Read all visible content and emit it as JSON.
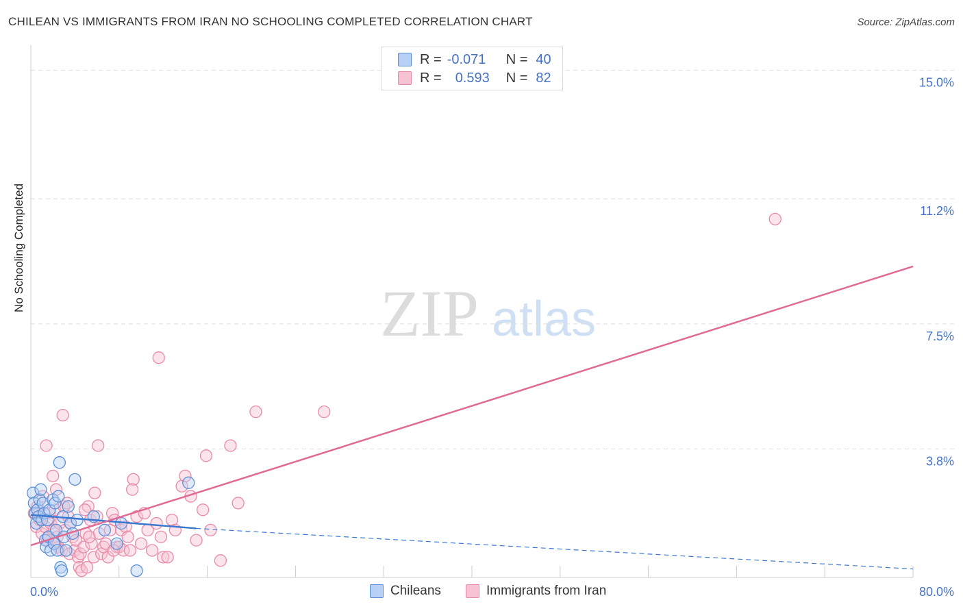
{
  "title": "CHILEAN VS IMMIGRANTS FROM IRAN NO SCHOOLING COMPLETED CORRELATION CHART",
  "source": "Source: ZipAtlas.com",
  "watermark": {
    "zip": "ZIP",
    "atlas": "atlas"
  },
  "colors": {
    "blue_fill": "#b8d0f5",
    "blue_stroke": "#5b8fd6",
    "blue_line": "#3a78d0",
    "pink_fill": "#f7c3d3",
    "pink_stroke": "#e88aa8",
    "pink_line": "#e06a94",
    "tick_text": "#4472c4",
    "grid": "#dddddd"
  },
  "legend": {
    "r_label": "R =",
    "n_label": "N =",
    "rows": [
      {
        "r": "-0.071",
        "n": "40"
      },
      {
        "r": "0.593",
        "n": "82"
      }
    ]
  },
  "bottom_legend": [
    "Chileans",
    "Immigrants from Iran"
  ],
  "chart_data": {
    "type": "scatter",
    "title": "CHILEAN VS IMMIGRANTS FROM IRAN NO SCHOOLING COMPLETED CORRELATION CHART",
    "xlabel": "",
    "ylabel": "No Schooling Completed",
    "xlim": [
      0,
      80
    ],
    "ylim": [
      0,
      15.5
    ],
    "x_tick_labels": [
      {
        "value": 0,
        "label": "0.0%"
      },
      {
        "value": 80,
        "label": "80.0%"
      }
    ],
    "y_ticks": [
      {
        "value": 3.8,
        "label": "3.8%"
      },
      {
        "value": 7.5,
        "label": "7.5%"
      },
      {
        "value": 11.2,
        "label": "11.2%"
      },
      {
        "value": 15.0,
        "label": "15.0%"
      }
    ],
    "x_minor_ticks": [
      8,
      16,
      24,
      32,
      40,
      48,
      56,
      64,
      72
    ],
    "series": [
      {
        "name": "Chileans",
        "trend": {
          "x_start": 0,
          "y_start": 1.85,
          "x_solid_end": 15,
          "y_solid_end": 1.45,
          "x_end": 80,
          "y_end": 0.25
        },
        "points": [
          [
            0.2,
            2.5
          ],
          [
            0.3,
            2.2
          ],
          [
            0.4,
            1.9
          ],
          [
            0.5,
            1.6
          ],
          [
            0.6,
            2.0
          ],
          [
            0.7,
            1.8
          ],
          [
            0.8,
            2.3
          ],
          [
            0.9,
            2.6
          ],
          [
            1.0,
            1.7
          ],
          [
            1.1,
            2.2
          ],
          [
            1.2,
            1.9
          ],
          [
            1.3,
            1.1
          ],
          [
            1.4,
            0.9
          ],
          [
            1.5,
            1.7
          ],
          [
            1.6,
            1.2
          ],
          [
            1.7,
            2.0
          ],
          [
            1.8,
            0.8
          ],
          [
            2.0,
            2.3
          ],
          [
            2.1,
            1.0
          ],
          [
            2.2,
            2.2
          ],
          [
            2.3,
            1.4
          ],
          [
            2.4,
            0.8
          ],
          [
            2.5,
            2.4
          ],
          [
            2.6,
            3.4
          ],
          [
            2.7,
            0.3
          ],
          [
            2.8,
            0.2
          ],
          [
            2.9,
            1.8
          ],
          [
            3.0,
            1.2
          ],
          [
            3.2,
            0.8
          ],
          [
            3.4,
            2.1
          ],
          [
            3.6,
            1.6
          ],
          [
            3.8,
            1.3
          ],
          [
            4.0,
            2.9
          ],
          [
            4.2,
            1.7
          ],
          [
            5.7,
            1.8
          ],
          [
            6.7,
            1.4
          ],
          [
            7.8,
            1.0
          ],
          [
            8.2,
            1.6
          ],
          [
            9.6,
            0.2
          ],
          [
            14.3,
            2.8
          ]
        ]
      },
      {
        "name": "Immigrants from Iran",
        "trend": {
          "x_start": 0,
          "y_start": 0.95,
          "x_end": 80,
          "y_end": 9.2
        },
        "points": [
          [
            0.3,
            1.9
          ],
          [
            0.5,
            1.5
          ],
          [
            0.6,
            2.1
          ],
          [
            0.8,
            1.7
          ],
          [
            1.0,
            1.3
          ],
          [
            1.1,
            2.4
          ],
          [
            1.3,
            1.5
          ],
          [
            1.5,
            1.1
          ],
          [
            1.6,
            1.2
          ],
          [
            1.7,
            1.9
          ],
          [
            1.8,
            1.6
          ],
          [
            2.0,
            3.0
          ],
          [
            2.1,
            1.4
          ],
          [
            2.2,
            2.0
          ],
          [
            2.3,
            2.6
          ],
          [
            2.4,
            1.2
          ],
          [
            2.5,
            0.9
          ],
          [
            2.6,
            1.6
          ],
          [
            2.8,
            0.8
          ],
          [
            3.0,
            2.1
          ],
          [
            3.1,
            1.4
          ],
          [
            3.3,
            2.2
          ],
          [
            3.4,
            1.8
          ],
          [
            3.5,
            0.7
          ],
          [
            3.6,
            1.6
          ],
          [
            3.8,
            1.2
          ],
          [
            4.0,
            0.8
          ],
          [
            4.1,
            1.1
          ],
          [
            4.3,
            0.6
          ],
          [
            4.4,
            0.3
          ],
          [
            4.5,
            0.7
          ],
          [
            4.6,
            0.2
          ],
          [
            4.8,
            0.9
          ],
          [
            5.0,
            1.3
          ],
          [
            5.1,
            0.3
          ],
          [
            5.2,
            2.1
          ],
          [
            5.4,
            1.7
          ],
          [
            5.5,
            1.0
          ],
          [
            5.7,
            0.6
          ],
          [
            5.8,
            2.5
          ],
          [
            6.0,
            1.8
          ],
          [
            6.2,
            1.3
          ],
          [
            6.4,
            0.7
          ],
          [
            6.6,
            0.9
          ],
          [
            6.8,
            1.0
          ],
          [
            7.0,
            0.6
          ],
          [
            7.2,
            1.4
          ],
          [
            7.4,
            1.9
          ],
          [
            7.6,
            1.7
          ],
          [
            7.8,
            0.9
          ],
          [
            8.0,
            0.9
          ],
          [
            8.2,
            1.4
          ],
          [
            8.4,
            0.8
          ],
          [
            8.6,
            1.5
          ],
          [
            8.8,
            1.2
          ],
          [
            9.0,
            0.8
          ],
          [
            9.3,
            2.9
          ],
          [
            9.6,
            1.8
          ],
          [
            10.0,
            1.0
          ],
          [
            10.3,
            1.9
          ],
          [
            10.6,
            1.4
          ],
          [
            11.0,
            0.8
          ],
          [
            11.4,
            1.6
          ],
          [
            11.8,
            1.2
          ],
          [
            12.0,
            0.6
          ],
          [
            12.4,
            0.6
          ],
          [
            12.8,
            1.7
          ],
          [
            13.1,
            1.4
          ],
          [
            13.7,
            2.7
          ],
          [
            14.0,
            3.0
          ],
          [
            14.5,
            2.4
          ],
          [
            15.0,
            1.1
          ],
          [
            15.6,
            2.0
          ],
          [
            15.9,
            3.6
          ],
          [
            16.3,
            1.4
          ],
          [
            17.2,
            0.5
          ],
          [
            18.1,
            3.9
          ],
          [
            18.8,
            2.2
          ],
          [
            11.6,
            6.5
          ],
          [
            20.4,
            4.9
          ],
          [
            26.6,
            4.9
          ],
          [
            67.5,
            10.6
          ]
        ]
      }
    ],
    "x_extra_points_note": "",
    "pink_extra": [
      [
        2.9,
        4.8
      ],
      [
        1.4,
        3.9
      ],
      [
        6.1,
        3.9
      ],
      [
        9.2,
        2.6
      ],
      [
        7.5,
        0.8
      ],
      [
        2.2,
        1.0
      ],
      [
        4.9,
        2.0
      ],
      [
        5.3,
        1.2
      ]
    ]
  }
}
